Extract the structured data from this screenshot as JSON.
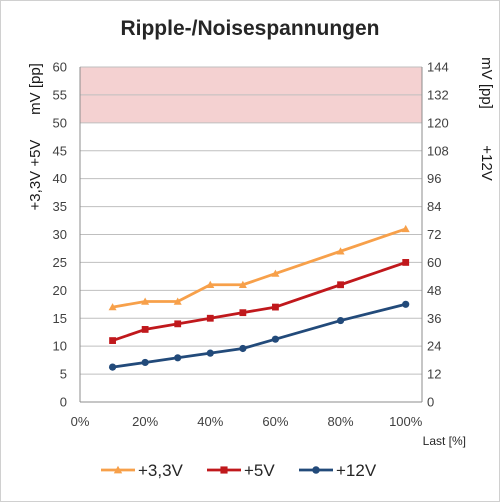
{
  "chart_data": {
    "type": "line",
    "title": "Ripple-/Noisespannungen",
    "xlabel": "Last [%]",
    "ylabel_left": [
      "+3,3V +5V",
      "mV [pp]"
    ],
    "ylabel_right": [
      "mV [pp]",
      "+12V"
    ],
    "x_ticks": [
      "0%",
      "20%",
      "40%",
      "60%",
      "80%",
      "100%"
    ],
    "xlim": [
      0,
      105
    ],
    "y_left_ticks": [
      "0",
      "5",
      "10",
      "15",
      "20",
      "25",
      "30",
      "35",
      "40",
      "45",
      "50",
      "55",
      "60"
    ],
    "y_right_ticks": [
      "0",
      "12",
      "24",
      "36",
      "48",
      "60",
      "72",
      "84",
      "96",
      "108",
      "120",
      "132",
      "144"
    ],
    "ylim_left": [
      0,
      60
    ],
    "ylim_right": [
      0,
      144
    ],
    "limit_band": {
      "from": 50,
      "to": 60,
      "color": "#f4d1d1"
    },
    "grid": true,
    "legend_position": "bottom",
    "series": [
      {
        "name": "+3,3V",
        "axis": "left",
        "color": "#f7a04a",
        "marker": "triangle",
        "x": [
          10,
          20,
          30,
          40,
          50,
          60,
          80,
          100
        ],
        "values": [
          17,
          18,
          18,
          21,
          21,
          23,
          27,
          31
        ]
      },
      {
        "name": "+5V",
        "axis": "left",
        "color": "#c0181c",
        "marker": "square",
        "x": [
          10,
          20,
          30,
          40,
          50,
          60,
          80,
          100
        ],
        "values": [
          11,
          13,
          14,
          15,
          16,
          17,
          21,
          25
        ]
      },
      {
        "name": "+12V",
        "axis": "right",
        "color": "#224a7a",
        "marker": "circle",
        "x": [
          10,
          20,
          30,
          40,
          50,
          60,
          80,
          100
        ],
        "values": [
          15,
          17,
          19,
          21,
          23,
          27,
          35,
          42
        ]
      }
    ]
  }
}
